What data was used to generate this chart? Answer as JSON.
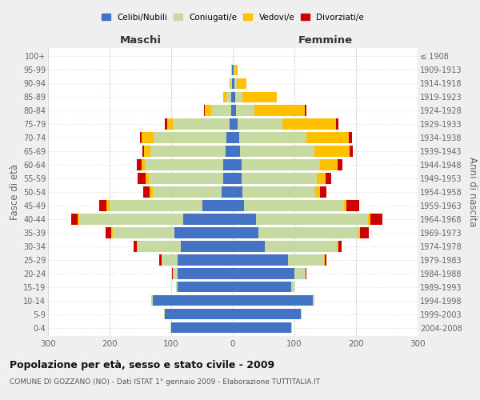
{
  "age_groups": [
    "0-4",
    "5-9",
    "10-14",
    "15-19",
    "20-24",
    "25-29",
    "30-34",
    "35-39",
    "40-44",
    "45-49",
    "50-54",
    "55-59",
    "60-64",
    "65-69",
    "70-74",
    "75-79",
    "80-84",
    "85-89",
    "90-94",
    "95-99",
    "100+"
  ],
  "birth_years": [
    "2004-2008",
    "1999-2003",
    "1994-1998",
    "1989-1993",
    "1984-1988",
    "1979-1983",
    "1974-1978",
    "1969-1973",
    "1964-1968",
    "1959-1963",
    "1954-1958",
    "1949-1953",
    "1944-1948",
    "1939-1943",
    "1934-1938",
    "1929-1933",
    "1924-1928",
    "1919-1923",
    "1914-1918",
    "1909-1913",
    "≤ 1908"
  ],
  "male": {
    "celibi": [
      100,
      110,
      130,
      90,
      90,
      90,
      85,
      95,
      80,
      50,
      18,
      15,
      15,
      12,
      10,
      5,
      3,
      2,
      1,
      1,
      0
    ],
    "coniugati": [
      1,
      2,
      2,
      2,
      8,
      25,
      70,
      100,
      170,
      150,
      112,
      122,
      128,
      122,
      118,
      92,
      32,
      8,
      3,
      1,
      0
    ],
    "vedovi": [
      0,
      0,
      0,
      0,
      0,
      1,
      1,
      2,
      2,
      5,
      5,
      5,
      5,
      10,
      20,
      10,
      10,
      5,
      1,
      0,
      0
    ],
    "divorziati": [
      0,
      0,
      0,
      0,
      1,
      3,
      5,
      10,
      10,
      12,
      10,
      12,
      8,
      3,
      3,
      3,
      2,
      0,
      0,
      0,
      0
    ]
  },
  "female": {
    "nubili": [
      95,
      110,
      130,
      95,
      100,
      90,
      52,
      42,
      38,
      18,
      16,
      14,
      14,
      12,
      10,
      8,
      5,
      4,
      2,
      1,
      0
    ],
    "coniugate": [
      1,
      2,
      3,
      5,
      18,
      58,
      118,
      162,
      182,
      162,
      118,
      122,
      128,
      120,
      110,
      72,
      30,
      12,
      5,
      2,
      0
    ],
    "vedove": [
      0,
      0,
      0,
      0,
      0,
      1,
      1,
      2,
      3,
      5,
      8,
      14,
      28,
      58,
      68,
      88,
      82,
      55,
      15,
      5,
      0
    ],
    "divorziate": [
      0,
      0,
      0,
      0,
      1,
      3,
      5,
      15,
      20,
      20,
      10,
      10,
      8,
      5,
      5,
      3,
      3,
      1,
      0,
      0,
      0
    ]
  },
  "colors": {
    "celibi": "#4472c4",
    "coniugati": "#c5d9a0",
    "vedovi": "#ffc000",
    "divorziati": "#cc0000"
  },
  "title": "Popolazione per età, sesso e stato civile - 2009",
  "subtitle": "COMUNE DI GOZZANO (NO) - Dati ISTAT 1° gennaio 2009 - Elaborazione TUTTITALIA.IT",
  "ylabel_left": "Fasce di età",
  "ylabel_right": "Anni di nascita",
  "xlabel_left": "Maschi",
  "xlabel_right": "Femmine",
  "xlim": 300,
  "legend_labels": [
    "Celibi/Nubili",
    "Coniugati/e",
    "Vedovi/e",
    "Divorziati/e"
  ],
  "background_color": "#efefef",
  "plot_bg": "#ffffff"
}
